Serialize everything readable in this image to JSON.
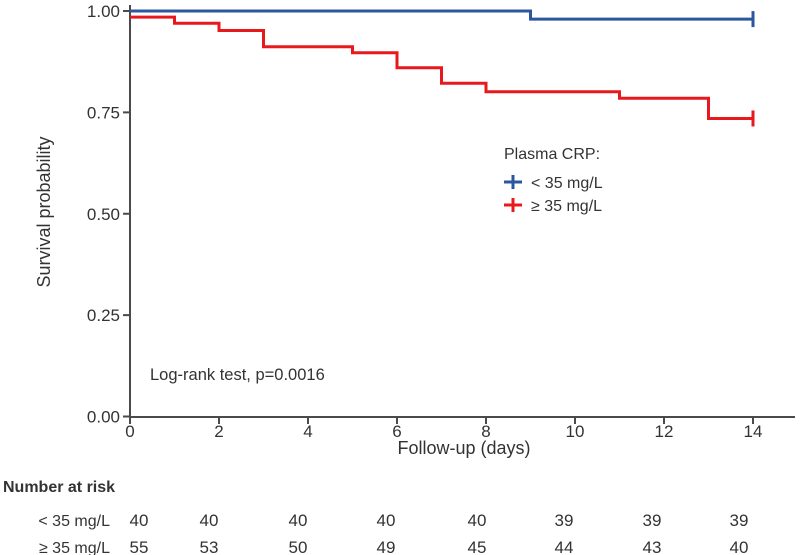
{
  "chart_data": {
    "type": "line",
    "subtype": "kaplan-meier-step",
    "title": "",
    "xlabel": "Follow-up (days)",
    "ylabel": "Survival probability",
    "xlim": [
      0,
      14
    ],
    "ylim": [
      0.0,
      1.0
    ],
    "grid": false,
    "x_ticks": [
      "0",
      "2",
      "4",
      "6",
      "8",
      "10",
      "12",
      "14"
    ],
    "x_tick_values": [
      0,
      2,
      4,
      6,
      8,
      10,
      12,
      14
    ],
    "y_ticks": [
      "1.00",
      "0.75",
      "0.50",
      "0.25",
      "0.00"
    ],
    "y_tick_values": [
      1.0,
      0.75,
      0.5,
      0.25,
      0.0
    ],
    "annotation": "Log-rank test, p=0.0016",
    "legend": {
      "title": "Plasma CRP:",
      "position": "inside-right",
      "entries": [
        {
          "label": "< 35 mg/L",
          "color": "#2B579F",
          "marker": "plus"
        },
        {
          "label": "≥ 35 mg/L",
          "color": "#E8191C",
          "marker": "plus"
        }
      ]
    },
    "series": [
      {
        "name": "< 35 mg/L",
        "color": "#2B579F",
        "steps": [
          [
            0,
            1.0
          ],
          [
            9,
            0.98
          ],
          [
            14,
            0.98
          ]
        ],
        "censor_tick_at_end": true
      },
      {
        "name": "≥ 35 mg/L",
        "color": "#E8191C",
        "steps": [
          [
            0,
            0.985
          ],
          [
            1,
            0.97
          ],
          [
            2,
            0.952
          ],
          [
            3,
            0.912
          ],
          [
            5,
            0.897
          ],
          [
            6,
            0.86
          ],
          [
            7,
            0.822
          ],
          [
            8,
            0.801
          ],
          [
            11,
            0.785
          ],
          [
            13,
            0.735
          ],
          [
            14,
            0.735
          ]
        ],
        "censor_tick_at_end": true
      }
    ]
  },
  "risk_table": {
    "title": "Number at risk",
    "time_points": [
      0,
      2,
      4,
      6,
      8,
      10,
      12,
      14
    ],
    "rows": [
      {
        "label": "< 35 mg/L",
        "values": [
          "40",
          "40",
          "40",
          "40",
          "40",
          "39",
          "39",
          "39"
        ]
      },
      {
        "label": "≥ 35 mg/L",
        "values": [
          "55",
          "53",
          "50",
          "49",
          "45",
          "44",
          "43",
          "40"
        ]
      }
    ]
  }
}
